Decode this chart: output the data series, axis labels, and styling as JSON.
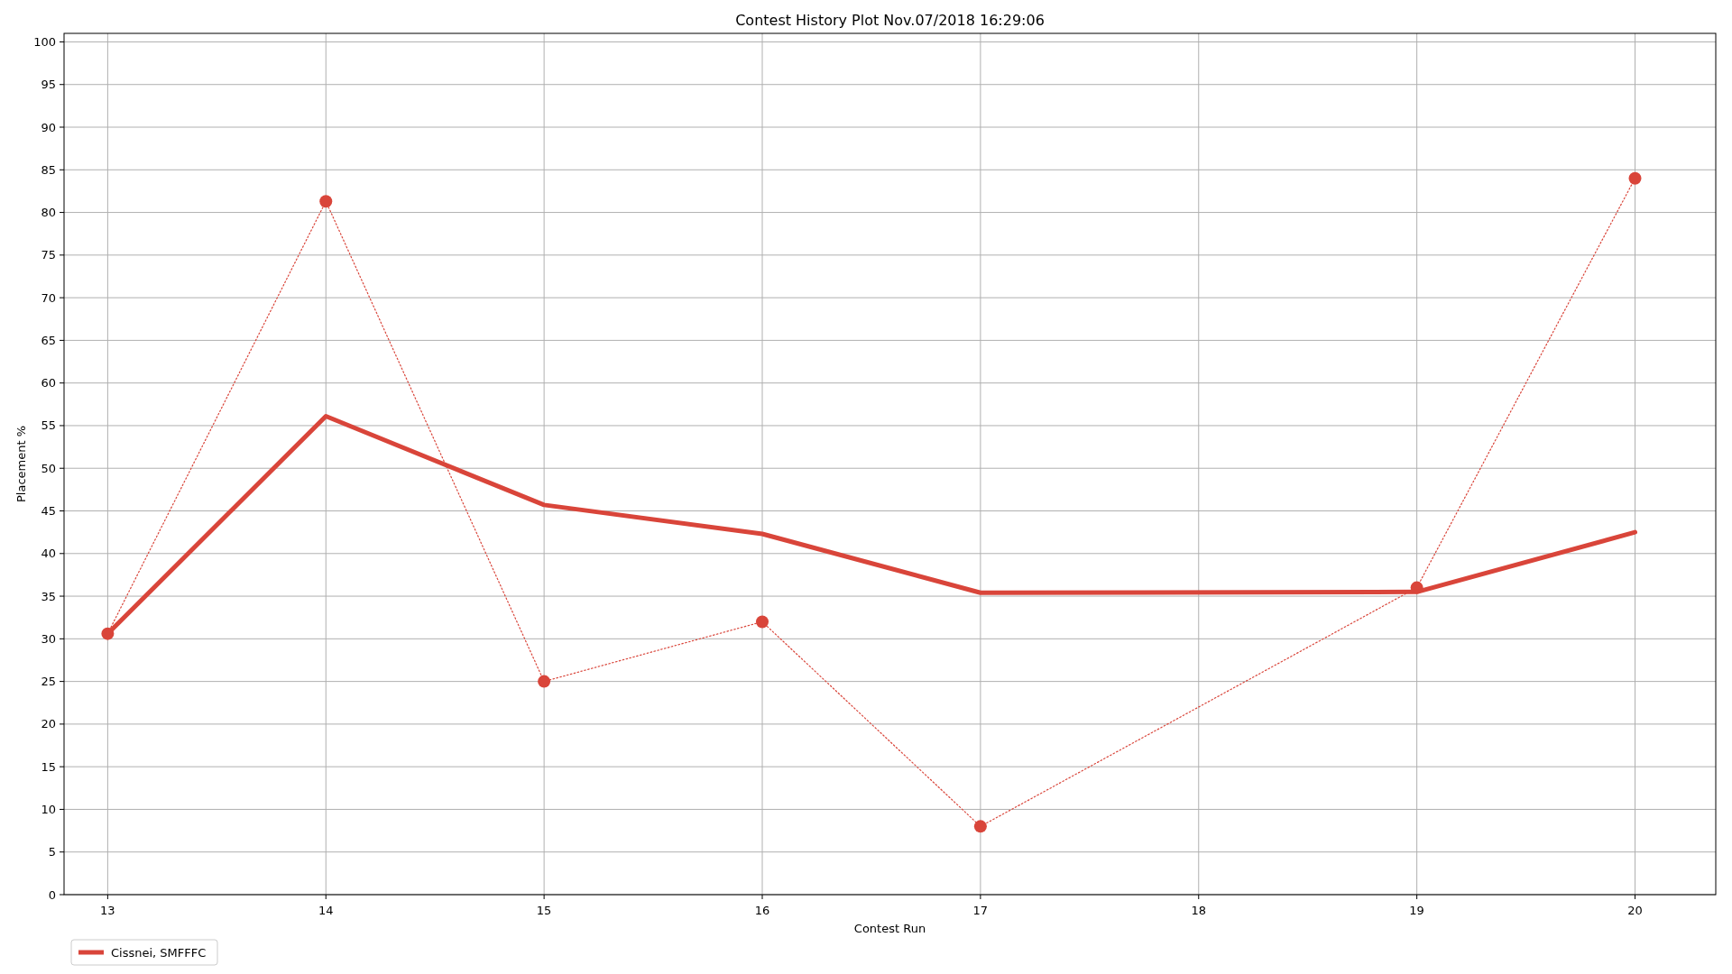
{
  "chart_data": {
    "type": "line",
    "title": "Contest History Plot Nov.07/2018 16:29:06",
    "xlabel": "Contest Run",
    "ylabel": "Placement %",
    "xlim": [
      12.8,
      20.37
    ],
    "xticks": [
      13,
      14,
      15,
      16,
      17,
      18,
      19,
      20
    ],
    "ylim": [
      0,
      101
    ],
    "yticks": [
      0,
      5,
      10,
      15,
      20,
      25,
      30,
      35,
      40,
      45,
      50,
      55,
      60,
      65,
      70,
      75,
      80,
      85,
      90,
      95,
      100
    ],
    "grid": true,
    "legend": "bottom left",
    "series": [
      {
        "color": "#d9453a",
        "marker": "circle",
        "line_style": "dotted",
        "x": [
          13,
          14,
          15,
          16,
          17,
          19,
          20
        ],
        "values": [
          30.6,
          81.3,
          25,
          32,
          8,
          36,
          84
        ]
      },
      {
        "name": "Cissnei, SMFFFC",
        "color": "#d9453a",
        "marker": "none",
        "line_style": "solid",
        "x": [
          13,
          14,
          15,
          16,
          17,
          19,
          20
        ],
        "values": [
          30.6,
          56.1,
          45.7,
          42.3,
          35.4,
          35.5,
          42.5
        ]
      }
    ]
  }
}
